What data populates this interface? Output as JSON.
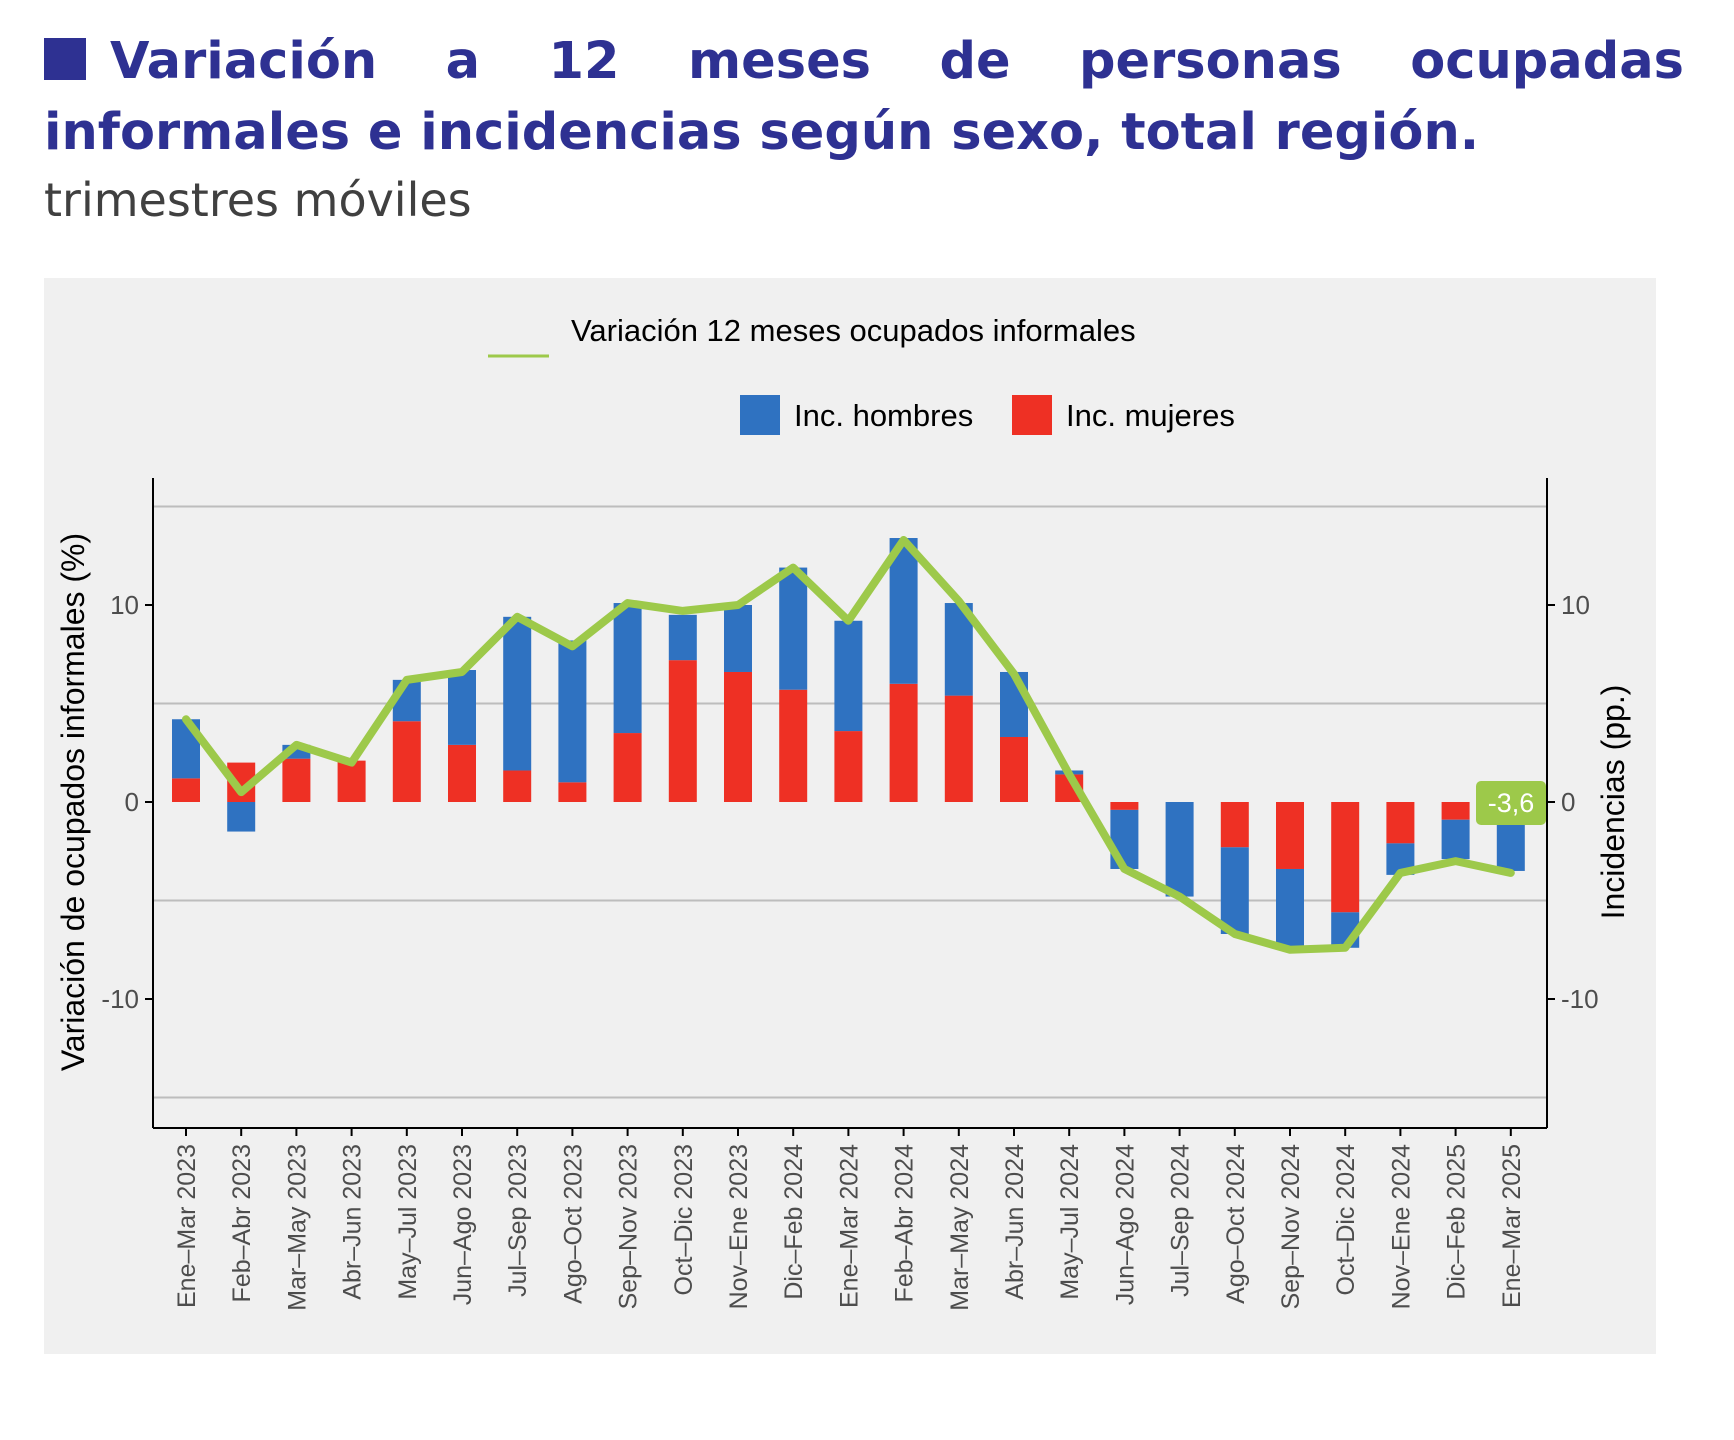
{
  "header": {
    "title": "Variación a 12 meses de personas ocupadas informales e incidencias según sexo, total región.",
    "subtitle": "trimestres móviles"
  },
  "colors": {
    "title": "#2e3192",
    "hombres": "#2f72c1",
    "mujeres": "#ee3024",
    "line": "#9dc94a",
    "panel_bg": "#f0f0f0",
    "grid": "#bdbdbd"
  },
  "chart_data": {
    "type": "bar",
    "stacked": true,
    "combined_with": "line",
    "title": "",
    "ylabel": "Variación de ocupados informales (%)",
    "y2label": "Incidencias (pp.)",
    "ylim": [
      -16.5,
      16.5
    ],
    "yticks": [
      -10,
      0,
      10
    ],
    "grid": true,
    "legend_placement": "top",
    "categories": [
      "Ene–Mar 2023",
      "Feb–Abr 2023",
      "Mar–May 2023",
      "Abr–Jun 2023",
      "May–Jul 2023",
      "Jun–Ago 2023",
      "Jul–Sep 2023",
      "Ago–Oct 2023",
      "Sep–Nov 2023",
      "Oct–Dic 2023",
      "Nov–Ene 2023",
      "Dic–Feb 2024",
      "Ene–Mar 2024",
      "Feb–Abr 2024",
      "Mar–May 2024",
      "Abr–Jun 2024",
      "May–Jul 2024",
      "Jun–Ago 2024",
      "Jul–Sep 2024",
      "Ago–Oct 2024",
      "Sep–Nov 2024",
      "Oct–Dic 2024",
      "Nov–Ene 2024",
      "Dic–Feb 2025",
      "Ene–Mar 2025"
    ],
    "series": [
      {
        "name": "Inc. hombres",
        "kind": "bar",
        "values": [
          3.0,
          -1.5,
          0.7,
          0.0,
          2.1,
          3.8,
          7.8,
          7.2,
          6.6,
          2.3,
          3.4,
          6.2,
          5.6,
          7.4,
          4.7,
          3.3,
          0.2,
          -3.0,
          -4.8,
          -4.4,
          -4.0,
          -1.8,
          -1.6,
          -2.0,
          -3.5
        ]
      },
      {
        "name": "Inc. mujeres",
        "kind": "bar",
        "values": [
          1.2,
          2.0,
          2.2,
          2.1,
          4.1,
          2.9,
          1.6,
          1.0,
          3.5,
          7.2,
          6.6,
          5.7,
          3.6,
          6.0,
          5.4,
          3.3,
          1.4,
          -0.4,
          0.0,
          -2.3,
          -3.4,
          -5.6,
          -2.1,
          -0.9,
          0.0
        ]
      },
      {
        "name": "Variación 12 meses ocupados informales",
        "kind": "line",
        "values": [
          4.2,
          0.5,
          2.9,
          2.0,
          6.2,
          6.6,
          9.4,
          7.9,
          10.1,
          9.7,
          10.0,
          11.9,
          9.2,
          13.3,
          10.2,
          6.5,
          1.4,
          -3.4,
          -4.8,
          -6.7,
          -7.5,
          -7.4,
          -3.6,
          -3.0,
          -3.6
        ]
      }
    ],
    "annotation": {
      "label": "-3,6",
      "category": "Ene–Mar 2025",
      "value": -3.6
    }
  }
}
